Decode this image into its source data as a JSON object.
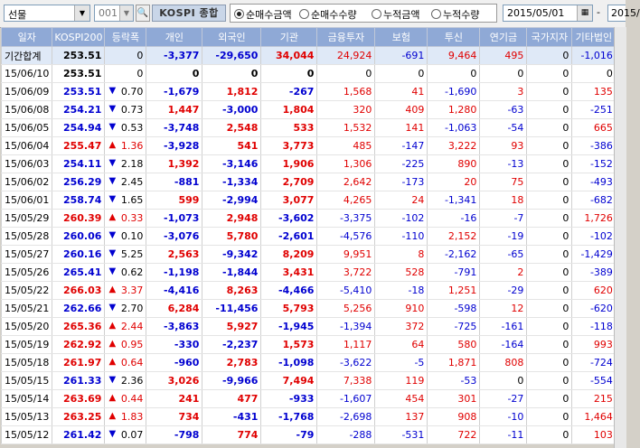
{
  "toolbar": {
    "market_select": "선물",
    "code": "001",
    "index_name": "KOSPI 종합",
    "radios": [
      {
        "label": "순매수금액",
        "selected": true
      },
      {
        "label": "순매수수량",
        "selected": false
      },
      {
        "label": "누적금액",
        "selected": false
      },
      {
        "label": "누적수량",
        "selected": false
      }
    ],
    "start_date": "2015/05/01",
    "date_separator": "-",
    "end_date": "2015/"
  },
  "table": {
    "headers": [
      "일자",
      "KOSPI200",
      "등락폭",
      "개인",
      "외국인",
      "기관",
      "금융투자",
      "보험",
      "투신",
      "연기금",
      "국가지자",
      "기타법인"
    ],
    "rows": [
      {
        "date": "기간합계",
        "kospi": "253.51",
        "dir": "",
        "chg": "0",
        "ind": "-3,377",
        "frn": "-29,650",
        "inst": "34,044",
        "fin": "24,924",
        "ins": "-691",
        "inv": "9,464",
        "pen": "495",
        "gov": "0",
        "etc": "-1,016"
      },
      {
        "date": "15/06/10",
        "kospi": "253.51",
        "dir": "",
        "chg": "0",
        "ind": "0",
        "frn": "0",
        "inst": "0",
        "fin": "0",
        "ins": "0",
        "inv": "0",
        "pen": "0",
        "gov": "0",
        "etc": "0"
      },
      {
        "date": "15/06/09",
        "kospi": "253.51",
        "dir": "down",
        "chg": "0.70",
        "ind": "-1,679",
        "frn": "1,812",
        "inst": "-267",
        "fin": "1,568",
        "ins": "41",
        "inv": "-1,690",
        "pen": "3",
        "gov": "0",
        "etc": "135"
      },
      {
        "date": "15/06/08",
        "kospi": "254.21",
        "dir": "down",
        "chg": "0.73",
        "ind": "1,447",
        "frn": "-3,000",
        "inst": "1,804",
        "fin": "320",
        "ins": "409",
        "inv": "1,280",
        "pen": "-63",
        "gov": "0",
        "etc": "-251"
      },
      {
        "date": "15/06/05",
        "kospi": "254.94",
        "dir": "down",
        "chg": "0.53",
        "ind": "-3,748",
        "frn": "2,548",
        "inst": "533",
        "fin": "1,532",
        "ins": "141",
        "inv": "-1,063",
        "pen": "-54",
        "gov": "0",
        "etc": "665"
      },
      {
        "date": "15/06/04",
        "kospi": "255.47",
        "dir": "up",
        "chg": "1.36",
        "ind": "-3,928",
        "frn": "541",
        "inst": "3,773",
        "fin": "485",
        "ins": "-147",
        "inv": "3,222",
        "pen": "93",
        "gov": "0",
        "etc": "-386"
      },
      {
        "date": "15/06/03",
        "kospi": "254.11",
        "dir": "down",
        "chg": "2.18",
        "ind": "1,392",
        "frn": "-3,146",
        "inst": "1,906",
        "fin": "1,306",
        "ins": "-225",
        "inv": "890",
        "pen": "-13",
        "gov": "0",
        "etc": "-152"
      },
      {
        "date": "15/06/02",
        "kospi": "256.29",
        "dir": "down",
        "chg": "2.45",
        "ind": "-881",
        "frn": "-1,334",
        "inst": "2,709",
        "fin": "2,642",
        "ins": "-173",
        "inv": "20",
        "pen": "75",
        "gov": "0",
        "etc": "-493"
      },
      {
        "date": "15/06/01",
        "kospi": "258.74",
        "dir": "down",
        "chg": "1.65",
        "ind": "599",
        "frn": "-2,994",
        "inst": "3,077",
        "fin": "4,265",
        "ins": "24",
        "inv": "-1,341",
        "pen": "18",
        "gov": "0",
        "etc": "-682"
      },
      {
        "date": "15/05/29",
        "kospi": "260.39",
        "dir": "up",
        "chg": "0.33",
        "ind": "-1,073",
        "frn": "2,948",
        "inst": "-3,602",
        "fin": "-3,375",
        "ins": "-102",
        "inv": "-16",
        "pen": "-7",
        "gov": "0",
        "etc": "1,726"
      },
      {
        "date": "15/05/28",
        "kospi": "260.06",
        "dir": "down",
        "chg": "0.10",
        "ind": "-3,076",
        "frn": "5,780",
        "inst": "-2,601",
        "fin": "-4,576",
        "ins": "-110",
        "inv": "2,152",
        "pen": "-19",
        "gov": "0",
        "etc": "-102"
      },
      {
        "date": "15/05/27",
        "kospi": "260.16",
        "dir": "down",
        "chg": "5.25",
        "ind": "2,563",
        "frn": "-9,342",
        "inst": "8,209",
        "fin": "9,951",
        "ins": "8",
        "inv": "-2,162",
        "pen": "-65",
        "gov": "0",
        "etc": "-1,429"
      },
      {
        "date": "15/05/26",
        "kospi": "265.41",
        "dir": "down",
        "chg": "0.62",
        "ind": "-1,198",
        "frn": "-1,844",
        "inst": "3,431",
        "fin": "3,722",
        "ins": "528",
        "inv": "-791",
        "pen": "2",
        "gov": "0",
        "etc": "-389"
      },
      {
        "date": "15/05/22",
        "kospi": "266.03",
        "dir": "up",
        "chg": "3.37",
        "ind": "-4,416",
        "frn": "8,263",
        "inst": "-4,466",
        "fin": "-5,410",
        "ins": "-18",
        "inv": "1,251",
        "pen": "-29",
        "gov": "0",
        "etc": "620"
      },
      {
        "date": "15/05/21",
        "kospi": "262.66",
        "dir": "down",
        "chg": "2.70",
        "ind": "6,284",
        "frn": "-11,456",
        "inst": "5,793",
        "fin": "5,256",
        "ins": "910",
        "inv": "-598",
        "pen": "12",
        "gov": "0",
        "etc": "-620"
      },
      {
        "date": "15/05/20",
        "kospi": "265.36",
        "dir": "up",
        "chg": "2.44",
        "ind": "-3,863",
        "frn": "5,927",
        "inst": "-1,945",
        "fin": "-1,394",
        "ins": "372",
        "inv": "-725",
        "pen": "-161",
        "gov": "0",
        "etc": "-118"
      },
      {
        "date": "15/05/19",
        "kospi": "262.92",
        "dir": "up",
        "chg": "0.95",
        "ind": "-330",
        "frn": "-2,237",
        "inst": "1,573",
        "fin": "1,117",
        "ins": "64",
        "inv": "580",
        "pen": "-164",
        "gov": "0",
        "etc": "993"
      },
      {
        "date": "15/05/18",
        "kospi": "261.97",
        "dir": "up",
        "chg": "0.64",
        "ind": "-960",
        "frn": "2,783",
        "inst": "-1,098",
        "fin": "-3,622",
        "ins": "-5",
        "inv": "1,871",
        "pen": "808",
        "gov": "0",
        "etc": "-724"
      },
      {
        "date": "15/05/15",
        "kospi": "261.33",
        "dir": "down",
        "chg": "2.36",
        "ind": "3,026",
        "frn": "-9,966",
        "inst": "7,494",
        "fin": "7,338",
        "ins": "119",
        "inv": "-53",
        "pen": "0",
        "gov": "0",
        "etc": "-554"
      },
      {
        "date": "15/05/14",
        "kospi": "263.69",
        "dir": "up",
        "chg": "0.44",
        "ind": "241",
        "frn": "477",
        "inst": "-933",
        "fin": "-1,607",
        "ins": "454",
        "inv": "301",
        "pen": "-27",
        "gov": "0",
        "etc": "215"
      },
      {
        "date": "15/05/13",
        "kospi": "263.25",
        "dir": "up",
        "chg": "1.83",
        "ind": "734",
        "frn": "-431",
        "inst": "-1,768",
        "fin": "-2,698",
        "ins": "137",
        "inv": "908",
        "pen": "-10",
        "gov": "0",
        "etc": "1,464"
      },
      {
        "date": "15/05/12",
        "kospi": "261.42",
        "dir": "down",
        "chg": "0.07",
        "ind": "-798",
        "frn": "774",
        "inst": "-79",
        "fin": "-288",
        "ins": "-531",
        "inv": "722",
        "pen": "-11",
        "gov": "0",
        "etc": "103"
      }
    ]
  },
  "colors": {
    "up": "#e00000",
    "down": "#0000d0",
    "header": "#8fa9d6"
  }
}
